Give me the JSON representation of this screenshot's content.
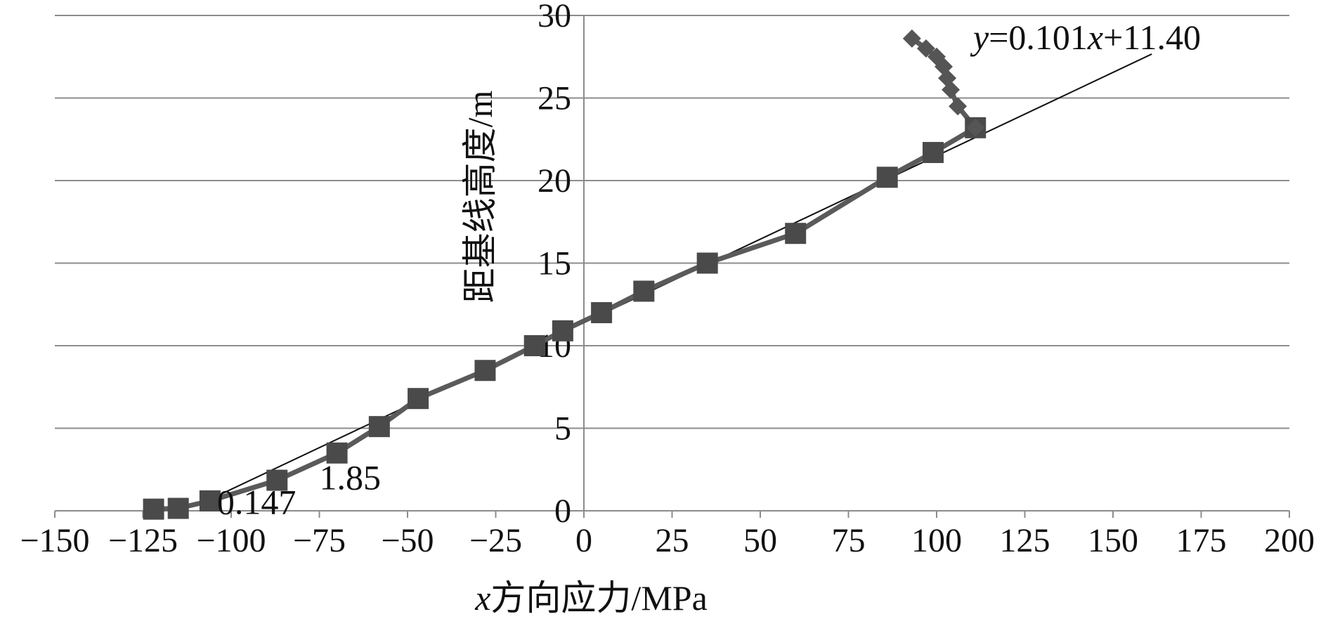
{
  "chart_data": {
    "type": "scatter",
    "title": "",
    "xlabel_prefix": "x",
    "xlabel_rest": "方向应力/MPa",
    "ylabel": "距基线高度/m",
    "xlim": [
      -150,
      200
    ],
    "ylim": [
      0,
      30
    ],
    "x_ticks": [
      -150,
      -125,
      -100,
      -75,
      -50,
      -25,
      0,
      25,
      50,
      75,
      100,
      125,
      150,
      175,
      200
    ],
    "x_tick_labels": [
      "−150",
      "−125",
      "−100",
      "−75",
      "−50",
      "−25",
      "0",
      "25",
      "50",
      "75",
      "100",
      "125",
      "150",
      "175",
      "200"
    ],
    "y_ticks": [
      0,
      5,
      10,
      15,
      20,
      25,
      30
    ],
    "y_tick_labels": [
      "0",
      "5",
      "10",
      "15",
      "20",
      "25",
      "30"
    ],
    "grid": "horizontal",
    "series": [
      {
        "marker": "square",
        "color": "#4a4a4a",
        "points": [
          {
            "x": -122,
            "y": 0.1
          },
          {
            "x": -115,
            "y": 0.147
          },
          {
            "x": -106,
            "y": 0.6
          },
          {
            "x": -87,
            "y": 1.85
          },
          {
            "x": -70,
            "y": 3.5
          },
          {
            "x": -58,
            "y": 5.1
          },
          {
            "x": -47,
            "y": 6.8
          },
          {
            "x": -28,
            "y": 8.5
          },
          {
            "x": -14,
            "y": 10.0
          },
          {
            "x": -6,
            "y": 10.9
          },
          {
            "x": 5,
            "y": 12.0
          },
          {
            "x": 17,
            "y": 13.3
          },
          {
            "x": 35,
            "y": 15.0
          },
          {
            "x": 60,
            "y": 16.8
          },
          {
            "x": 86,
            "y": 20.2
          },
          {
            "x": 99,
            "y": 21.7
          },
          {
            "x": 111,
            "y": 23.2
          }
        ]
      },
      {
        "marker": "diamond",
        "color": "#555555",
        "points": [
          {
            "x": 111,
            "y": 23.2
          },
          {
            "x": 106,
            "y": 24.5
          },
          {
            "x": 104,
            "y": 25.5
          },
          {
            "x": 103,
            "y": 26.2
          },
          {
            "x": 102,
            "y": 26.9
          },
          {
            "x": 100,
            "y": 27.5
          },
          {
            "x": 97,
            "y": 28.0
          },
          {
            "x": 93,
            "y": 28.6
          }
        ]
      }
    ],
    "fit_line": {
      "equation_y": "y",
      "equation_mid": "=0.101",
      "equation_x": "x",
      "equation_end": "+11.40",
      "slope": 0.101,
      "intercept": 11.4,
      "x_start": -110,
      "x_end": 161
    },
    "annotations": [
      {
        "text": "1.85",
        "x": -75,
        "y": 1.3
      },
      {
        "text": "0.147",
        "x": -104,
        "y": -0.2
      }
    ]
  }
}
